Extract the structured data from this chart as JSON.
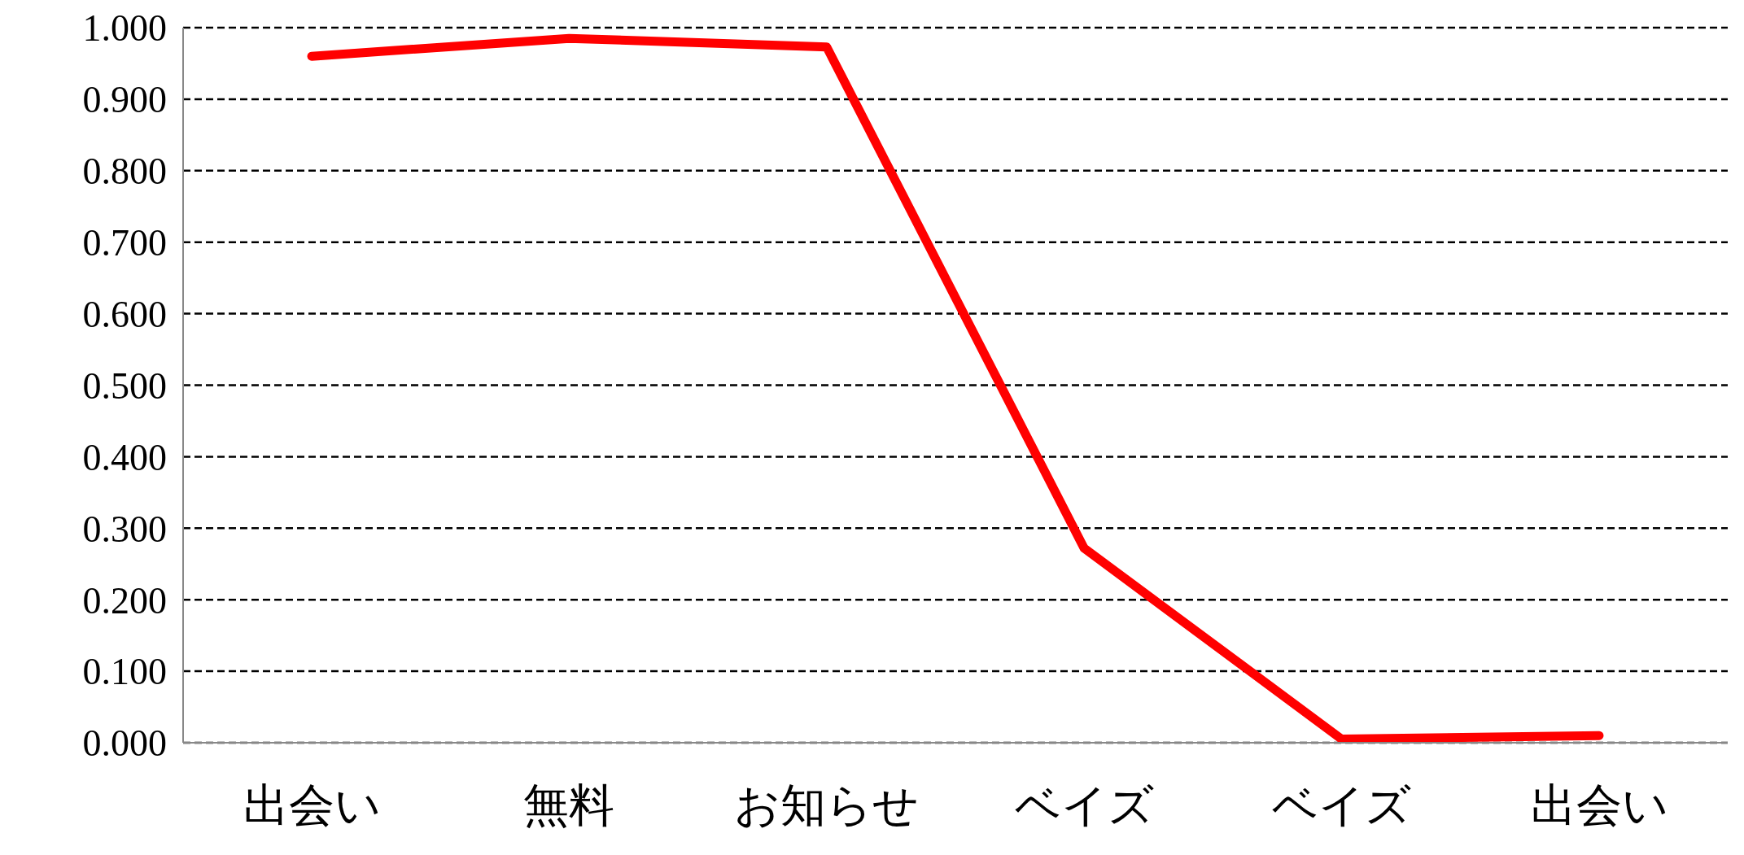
{
  "chart_data": {
    "type": "line",
    "categories": [
      "出会い",
      "無料",
      "お知らせ",
      "ベイズ",
      "ベイズ",
      "出会い"
    ],
    "series": [
      {
        "color": "#ff0000",
        "values": [
          0.96,
          0.985,
          0.973,
          0.272,
          0.005,
          0.01
        ]
      }
    ],
    "ylim": [
      0,
      1
    ],
    "yticks": [
      {
        "value": 0,
        "label": "0.000"
      },
      {
        "value": 0.1,
        "label": "0.100"
      },
      {
        "value": 0.2,
        "label": "0.200"
      },
      {
        "value": 0.3,
        "label": "0.300"
      },
      {
        "value": 0.4,
        "label": "0.400"
      },
      {
        "value": 0.5,
        "label": "0.500"
      },
      {
        "value": 0.6,
        "label": "0.600"
      },
      {
        "value": 0.7,
        "label": "0.700"
      },
      {
        "value": 0.8,
        "label": "0.800"
      },
      {
        "value": 0.9,
        "label": "0.900"
      },
      {
        "value": 1,
        "label": "1.000"
      }
    ],
    "grid": "y",
    "legend": false,
    "marker": "none",
    "line_style": "solid"
  }
}
